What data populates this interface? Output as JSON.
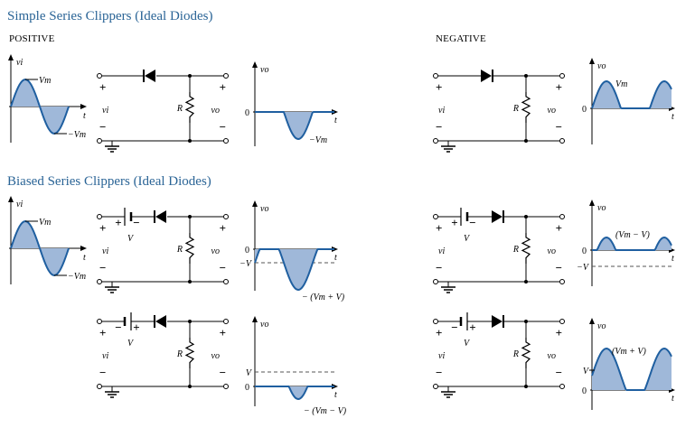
{
  "titles": {
    "simple": "Simple Series Clippers (Ideal Diodes)",
    "biased": "Biased Series Clippers (Ideal Diodes)",
    "positive": "POSITIVE",
    "negative": "NEGATIVE"
  },
  "labels": {
    "vi": "vi",
    "vo": "vo",
    "t": "t",
    "R": "R",
    "V": "V",
    "zero": "0",
    "plus": "+",
    "minus": "−",
    "Vm": "Vm",
    "neg_Vm": "−Vm",
    "neg_V": "−V",
    "Vm_minus_V": "(Vm − V)",
    "Vm_plus_V": "(Vm + V)",
    "neg_Vm_plus_V": "− (Vm + V)",
    "neg_Vm_minus_V": "− (Vm − V)"
  },
  "colors": {
    "title": "#2a6496",
    "wave_fill": "#9fb8d9",
    "wave_stroke": "#1f5fa0",
    "line": "#000000"
  }
}
